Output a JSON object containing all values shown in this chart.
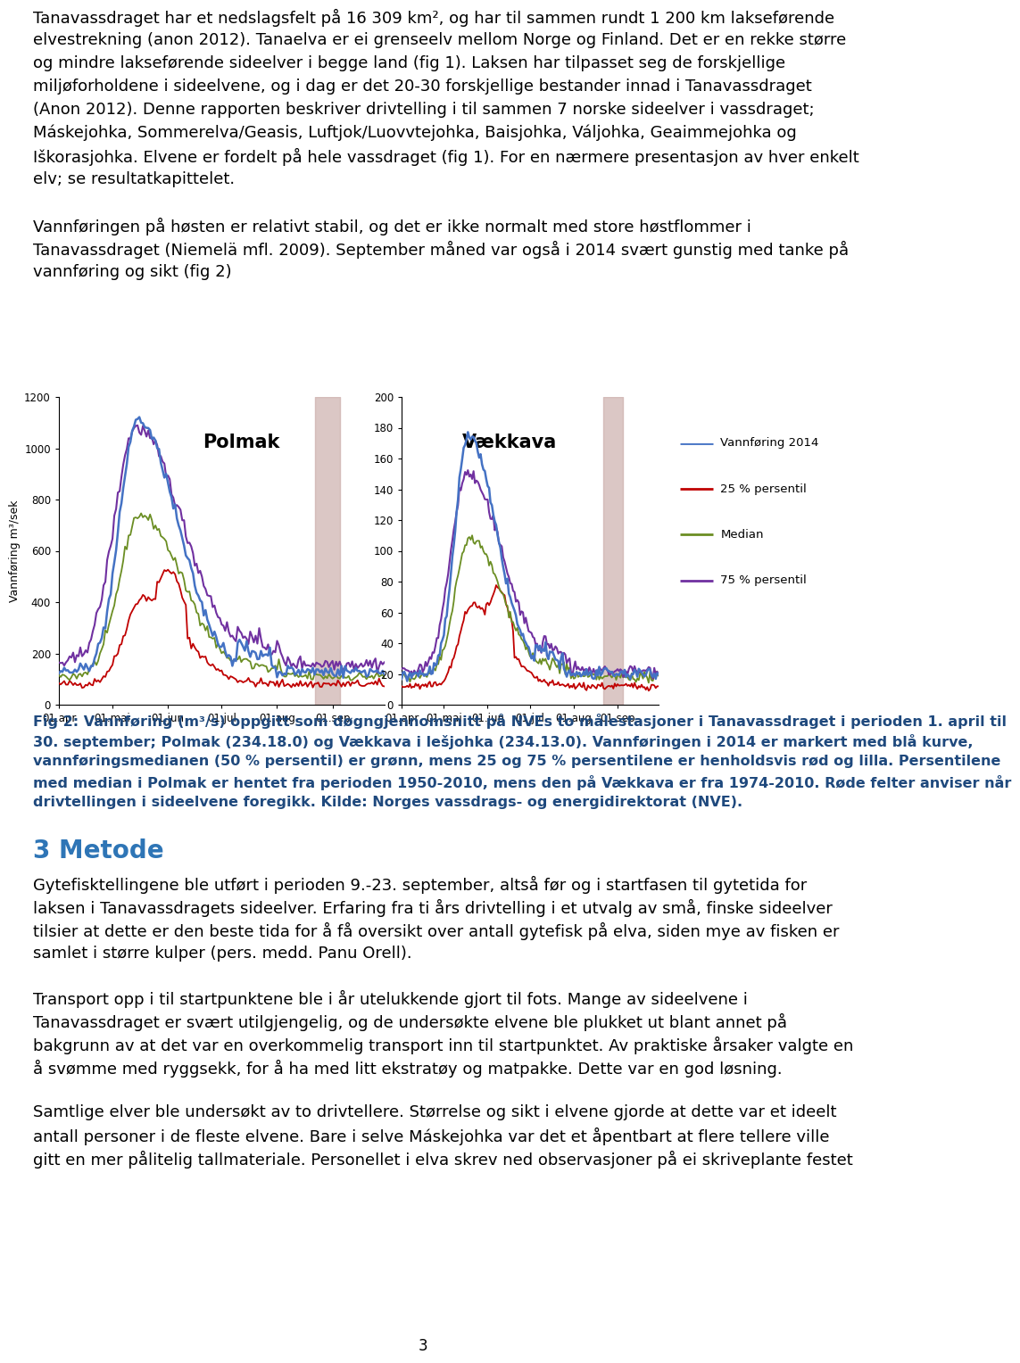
{
  "body_fontsize": 13.0,
  "caption_fontsize": 11.5,
  "title_fontsize": 20,
  "title_color": "#2E75B6",
  "body_color": "#000000",
  "caption_color": "#1F497D",
  "background_color": "#ffffff",
  "page_number": "3",
  "para1_lines": [
    "Tanavassdraget har et nedslagsfelt på 16 309 km², og har til sammen rundt 1 200 km lakseførende",
    "elvestrekning (anon 2012). Tanaelva er ei grenseelv mellom Norge og Finland. Det er en rekke større",
    "og mindre lakseførende sideelver i begge land (fig 1). Laksen har tilpasset seg de forskjellige",
    "miljøforholdene i sideelvene, og i dag er det 20-30 forskjellige bestander innad i Tanavassdraget",
    "(Anon 2012). Denne rapporten beskriver drivtelling i til sammen 7 norske sideelver i vassdraget;",
    "Máskejohka, Sommerelva/Geasis, Luftjok/Luovvtejohka, Baisjohka, Váljohka, Geaimmejohka og",
    "Iškorasjohka. Elvene er fordelt på hele vassdraget (fig 1). For en nærmere presentasjon av hver enkelt",
    "elv; se resultatkapittelet."
  ],
  "para2_lines": [
    "Vannføringen på høsten er relativt stabil, og det er ikke normalt med store høstflommer i",
    "Tanavassdraget (Niemelä mfl. 2009). September måned var også i 2014 svært gunstig med tanke på",
    "vannføring og sikt (fig 2)"
  ],
  "caption_lines": [
    "Fig 2: Vannføring (m³/s) oppgitt som døgngjennomsnitt på NVEs to målestasjoner i Tanavassdraget i perioden 1. april til",
    "30. september; Polmak (234.18.0) og Vækkava i lešjohka (234.13.0). Vannføringen i 2014 er markert med blå kurve,",
    "vannføringsmedianen (50 % persentil) er grønn, mens 25 og 75 % persentilene er henholdsvis rød og lilla. Persentilene",
    "med median i Polmak er hentet fra perioden 1950-2010, mens den på Vækkava er fra 1974-2010. Røde felter anviser når",
    "drivtellingen i sideelvene foregikk. Kilde: Norges vassdrags- og energidirektorat (NVE)."
  ],
  "metode_title": "3 Metode",
  "metode_p1_lines": [
    "Gytefisktellingene ble utført i perioden 9.-23. september, altså før og i startfasen til gytetida for",
    "laksen i Tanavassdragets sideelver. Erfaring fra ti års drivtelling i et utvalg av små, finske sideelver",
    "tilsier at dette er den beste tida for å få oversikt over antall gytefisk på elva, siden mye av fisken er",
    "samlet i større kulper (pers. medd. Panu Orell)."
  ],
  "metode_p2_lines": [
    "Transport opp i til startpunktene ble i år utelukkende gjort til fots. Mange av sideelvene i",
    "Tanavassdraget er svært utilgjengelig, og de undersøkte elvene ble plukket ut blant annet på",
    "bakgrunn av at det var en overkommelig transport inn til startpunktet. Av praktiske årsaker valgte en",
    "å svømme med ryggsekk, for å ha med litt ekstratøy og matpakke. Dette var en god løsning."
  ],
  "metode_p3_lines": [
    "Samtlige elver ble undersøkt av to drivtellere. Størrelse og sikt i elvene gjorde at dette var et ideelt",
    "antall personer i de fleste elvene. Bare i selve Máskejohka var det et åpentbart at flere tellere ville",
    "gitt en mer pålitelig tallmateriale. Personellet i elva skrev ned observasjoner på ei skriveplante festet"
  ],
  "legend_items": [
    {
      "color": "#4472C4",
      "label": "Vannføring 2014"
    },
    {
      "color": "#C00000",
      "label": "25 % persentil"
    },
    {
      "color": "#6B8E23",
      "label": "Median"
    },
    {
      "color": "#7030A0",
      "label": "75 % persentil"
    }
  ],
  "pol_yticks": [
    0,
    200,
    400,
    600,
    800,
    1000,
    1200
  ],
  "vak_yticks": [
    0,
    20,
    40,
    60,
    80,
    100,
    120,
    140,
    160,
    180,
    200
  ],
  "xtick_pos": [
    0,
    30,
    61,
    91,
    122,
    153
  ],
  "xtick_labels": [
    "01.apr",
    "01.mai",
    "01.jun",
    "01.jul",
    "01.aug",
    "01.sep"
  ]
}
